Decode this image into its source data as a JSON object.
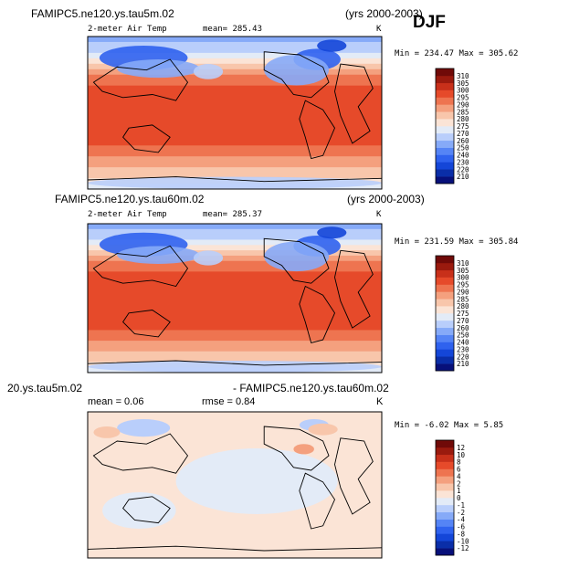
{
  "season": "DJF",
  "panels": [
    {
      "case": "FAMIPC5.ne120.ys.tau5m.02",
      "years": "(yrs 2000-2003)",
      "variable": "2-meter Air Temp",
      "stat_text": "mean=  285.43",
      "units": "K",
      "minmax": "Min = 234.47 Max = 305.62"
    },
    {
      "case": "FAMIPC5.ne120.ys.tau60m.02",
      "years": "(yrs 2000-2003)",
      "variable": "2-meter Air Temp",
      "stat_text": "mean=  285.37",
      "units": "K",
      "minmax": "Min = 231.59 Max = 305.84"
    },
    {
      "case": "20.ys.tau5m.02",
      "years": "- FAMIPC5.ne120.ys.tau60m.02",
      "variable": "mean =   0.06",
      "stat_text": "rmse =   0.84",
      "units": "K",
      "minmax": "Min =  -6.02 Max =   5.85"
    }
  ],
  "chart_data": [
    {
      "type": "heatmap",
      "title": "FAMIPC5.ne120.ys.tau5m.02",
      "subtitle": "2-meter Air Temp",
      "mean": 285.43,
      "min": 234.47,
      "max": 305.62,
      "units": "K",
      "colorbar_levels": [
        210,
        220,
        230,
        240,
        250,
        260,
        270,
        275,
        280,
        285,
        290,
        295,
        300,
        305,
        310
      ],
      "colorbar_colors": [
        "#07107a",
        "#0a2ea8",
        "#1446d8",
        "#2f62ee",
        "#5584f5",
        "#86aaf8",
        "#b9cefb",
        "#e3ebf7",
        "#fbe4d6",
        "#f8c6ab",
        "#f4a07e",
        "#ee7450",
        "#e64a2a",
        "#c8301a",
        "#9a1a0e",
        "#700a08"
      ]
    },
    {
      "type": "heatmap",
      "title": "FAMIPC5.ne120.ys.tau60m.02",
      "subtitle": "2-meter Air Temp",
      "mean": 285.37,
      "min": 231.59,
      "max": 305.84,
      "units": "K",
      "colorbar_levels": [
        210,
        220,
        230,
        240,
        250,
        260,
        270,
        275,
        280,
        285,
        290,
        295,
        300,
        305,
        310
      ],
      "colorbar_colors": [
        "#07107a",
        "#0a2ea8",
        "#1446d8",
        "#2f62ee",
        "#5584f5",
        "#86aaf8",
        "#b9cefb",
        "#e3ebf7",
        "#fbe4d6",
        "#f8c6ab",
        "#f4a07e",
        "#ee7450",
        "#e64a2a",
        "#c8301a",
        "#9a1a0e",
        "#700a08"
      ]
    },
    {
      "type": "heatmap",
      "title": "20.ys.tau5m.02 - FAMIPC5.ne120.ys.tau60m.02",
      "mean": 0.06,
      "rmse": 0.84,
      "min": -6.02,
      "max": 5.85,
      "units": "K",
      "colorbar_levels": [
        -12,
        -10,
        -8,
        -6,
        -4,
        -2,
        -1,
        0,
        1,
        2,
        4,
        6,
        8,
        10,
        12
      ],
      "colorbar_colors": [
        "#07107a",
        "#0a2ea8",
        "#1446d8",
        "#2f62ee",
        "#5584f5",
        "#86aaf8",
        "#b9cefb",
        "#e3ebf7",
        "#fbe4d6",
        "#f8c6ab",
        "#f4a07e",
        "#ee7450",
        "#e64a2a",
        "#c8301a",
        "#9a1a0e",
        "#700a08"
      ]
    }
  ]
}
